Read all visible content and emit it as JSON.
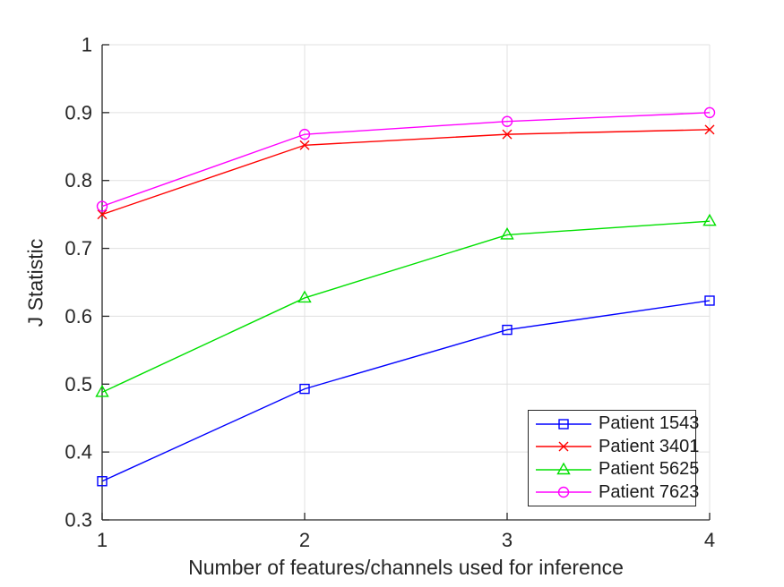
{
  "figure": {
    "background": "#ffffff"
  },
  "chart_data": {
    "type": "line",
    "title": "",
    "xlabel": "Number of features/channels used for inference",
    "ylabel": "J Statistic",
    "x": [
      1,
      2,
      3,
      4
    ],
    "series": [
      {
        "name": "Patient 1543",
        "color": "#0000ff",
        "marker": "square",
        "values": [
          0.357,
          0.493,
          0.58,
          0.623
        ]
      },
      {
        "name": "Patient 3401",
        "color": "#ff0000",
        "marker": "x",
        "values": [
          0.75,
          0.852,
          0.868,
          0.875
        ]
      },
      {
        "name": "Patient 5625",
        "color": "#00e000",
        "marker": "triangle",
        "values": [
          0.488,
          0.627,
          0.72,
          0.74
        ]
      },
      {
        "name": "Patient 7623",
        "color": "#ff00ff",
        "marker": "circle",
        "values": [
          0.762,
          0.868,
          0.887,
          0.9
        ]
      }
    ],
    "xlim": [
      1,
      4
    ],
    "ylim": [
      0.3,
      1.0
    ],
    "x_ticks": [
      1,
      2,
      3,
      4
    ],
    "x_tick_labels": [
      "1",
      "2",
      "3",
      "4"
    ],
    "y_ticks": [
      0.3,
      0.4,
      0.5,
      0.6,
      0.7,
      0.8,
      0.9,
      1.0
    ],
    "y_tick_labels": [
      "0.3",
      "0.4",
      "0.5",
      "0.6",
      "0.7",
      "0.8",
      "0.9",
      "1"
    ],
    "grid": true,
    "legend_position": "bottom-right",
    "colors": {
      "axis": "#262626",
      "grid": "#e0e0e0",
      "tick_label": "#262626",
      "background": "#ffffff"
    }
  }
}
